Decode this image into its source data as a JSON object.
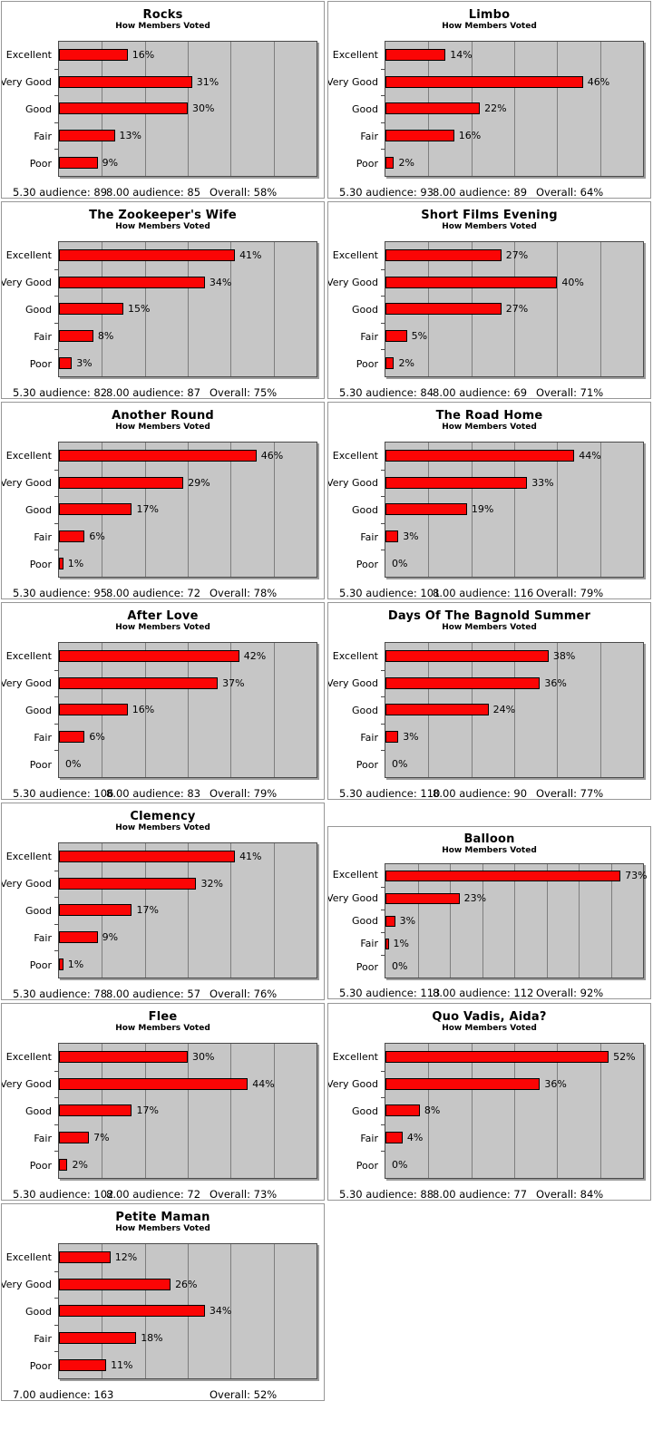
{
  "page": {
    "background": "#ffffff"
  },
  "shared": {
    "subtitle": "How Members Voted",
    "categories": [
      "Excellent",
      "Very Good",
      "Good",
      "Fair",
      "Poor"
    ],
    "bar_color": "#fb0505",
    "plot_background": "#c6c6c6",
    "gridline_color": "#7e7e7e",
    "orientation": "horizontal",
    "grid": true,
    "data_labels": true
  },
  "chart_data": [
    {
      "type": "bar",
      "title": "Rocks",
      "values": [
        16,
        31,
        30,
        13,
        9
      ],
      "value_labels": [
        "16%",
        "31%",
        "30%",
        "13%",
        "9%"
      ],
      "xlim": [
        0,
        60
      ],
      "footer_display": [
        "5.30 audience:  89",
        "8.00 audience:  85",
        "Overall: 58%"
      ]
    },
    {
      "type": "bar",
      "title": "Limbo",
      "values": [
        14,
        46,
        22,
        16,
        2
      ],
      "value_labels": [
        "14%",
        "46%",
        "22%",
        "16%",
        "2%"
      ],
      "xlim": [
        0,
        60
      ],
      "footer_display": [
        "5.30 audience:  93",
        "8.00 audience:  89",
        "Overall: 64%"
      ]
    },
    {
      "type": "bar",
      "title": "The Zookeeper's Wife",
      "values": [
        41,
        34,
        15,
        8,
        3
      ],
      "value_labels": [
        "41%",
        "34%",
        "15%",
        "8%",
        "3%"
      ],
      "xlim": [
        0,
        60
      ],
      "footer_display": [
        "5.30 audience:  82",
        "8.00 audience:  87",
        "Overall: 75%"
      ]
    },
    {
      "type": "bar",
      "title": "Short Films Evening",
      "values": [
        27,
        40,
        27,
        5,
        2
      ],
      "value_labels": [
        "27%",
        "40%",
        "27%",
        "5%",
        "2%"
      ],
      "xlim": [
        0,
        60
      ],
      "footer_display": [
        "5.30 audience:  84",
        "8.00 audience:  69",
        "Overall: 71%"
      ]
    },
    {
      "type": "bar",
      "title": "Another Round",
      "values": [
        46,
        29,
        17,
        6,
        1
      ],
      "value_labels": [
        "46%",
        "29%",
        "17%",
        "6%",
        "1%"
      ],
      "xlim": [
        0,
        60
      ],
      "footer_display": [
        "5.30 audience:  95",
        "8.00 audience:  72",
        "Overall: 78%"
      ]
    },
    {
      "type": "bar",
      "title": "The Road Home",
      "values": [
        44,
        33,
        19,
        3,
        0
      ],
      "value_labels": [
        "44%",
        "33%",
        "19%",
        "3%",
        "0%"
      ],
      "xlim": [
        0,
        60
      ],
      "footer_display": [
        "5.30 audience:  101",
        "8.00 audience:  116",
        "Overall: 79%"
      ]
    },
    {
      "type": "bar",
      "title": "After Love",
      "values": [
        42,
        37,
        16,
        6,
        0
      ],
      "value_labels": [
        "42%",
        "37%",
        "16%",
        "6%",
        "0%"
      ],
      "xlim": [
        0,
        60
      ],
      "footer_display": [
        "5.30 audience:  106",
        "8.00 audience:  83",
        "Overall: 79%"
      ]
    },
    {
      "type": "bar",
      "title": "Days Of The Bagnold Summer",
      "values": [
        38,
        36,
        24,
        3,
        0
      ],
      "value_labels": [
        "38%",
        "36%",
        "24%",
        "3%",
        "0%"
      ],
      "xlim": [
        0,
        60
      ],
      "footer_display": [
        "5.30 audience:  110",
        "8.00 audience:  90",
        "Overall: 77%"
      ]
    },
    {
      "type": "bar",
      "title": "Clemency",
      "values": [
        41,
        32,
        17,
        9,
        1
      ],
      "value_labels": [
        "41%",
        "32%",
        "17%",
        "9%",
        "1%"
      ],
      "xlim": [
        0,
        60
      ],
      "footer_display": [
        "5.30 audience:  78",
        "8.00 audience:  57",
        "Overall: 76%"
      ]
    },
    {
      "type": "bar",
      "title": "Balloon",
      "values": [
        73,
        23,
        3,
        1,
        0
      ],
      "value_labels": [
        "73%",
        "23%",
        "3%",
        "1%",
        "0%"
      ],
      "xlim": [
        0,
        80
      ],
      "layout_hint": "offset_down_compact",
      "footer_display": [
        "5.30 audience:  113",
        "8.00 audience:  112",
        "Overall: 92%"
      ]
    },
    {
      "type": "bar",
      "title": "Flee",
      "values": [
        30,
        44,
        17,
        7,
        2
      ],
      "value_labels": [
        "30%",
        "44%",
        "17%",
        "7%",
        "2%"
      ],
      "xlim": [
        0,
        60
      ],
      "footer_display": [
        "5.30 audience:  102",
        "8.00 audience:  72",
        "Overall: 73%"
      ]
    },
    {
      "type": "bar",
      "title": "Quo Vadis, Aida?",
      "values": [
        52,
        36,
        8,
        4,
        0
      ],
      "value_labels": [
        "52%",
        "36%",
        "8%",
        "4%",
        "0%"
      ],
      "xlim": [
        0,
        60
      ],
      "footer_display": [
        "5.30 audience:  88",
        "8.00 audience:  77",
        "Overall: 84%"
      ]
    },
    {
      "type": "bar",
      "title": "Petite Maman",
      "values": [
        12,
        26,
        34,
        18,
        11
      ],
      "value_labels": [
        "12%",
        "26%",
        "34%",
        "18%",
        "11%"
      ],
      "xlim": [
        0,
        60
      ],
      "footer_display": [
        "7.00 audience:  163",
        "",
        "Overall: 52%"
      ]
    }
  ]
}
